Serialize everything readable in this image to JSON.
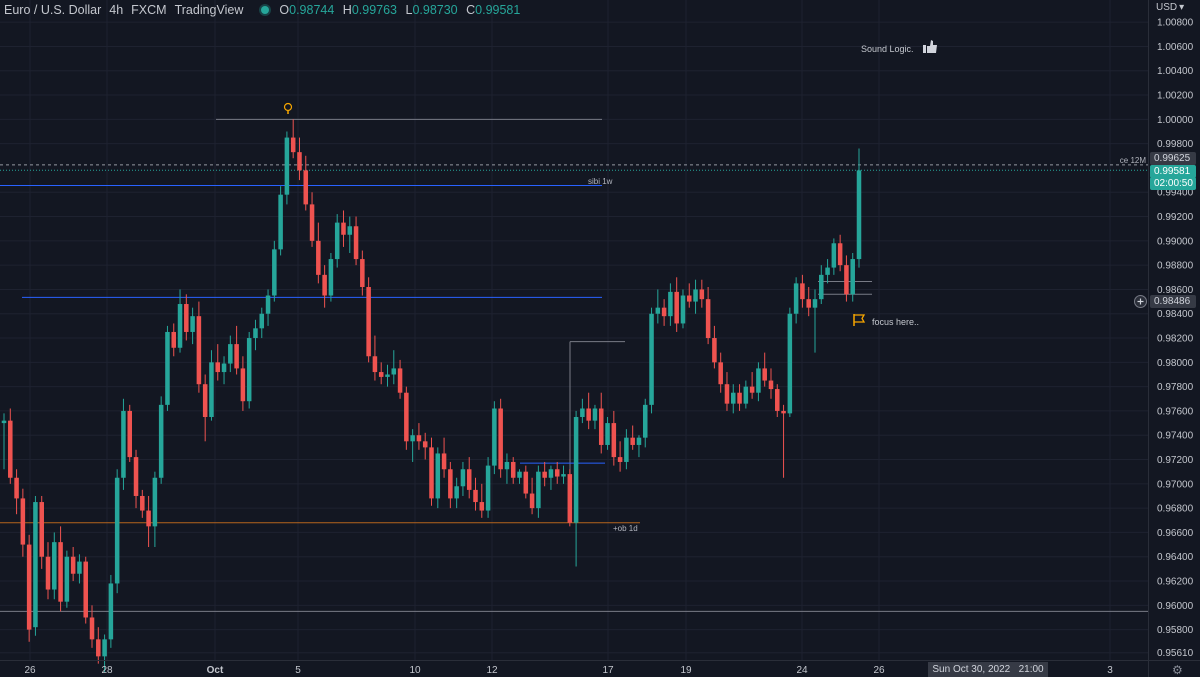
{
  "header": {
    "symbol": "Euro / U.S. Dollar",
    "interval": "4h",
    "exchange": "FXCM",
    "source": "TradingView",
    "ohlc": [
      {
        "k": "O",
        "v": "0.98744"
      },
      {
        "k": "H",
        "v": "0.99763"
      },
      {
        "k": "L",
        "v": "0.98730"
      },
      {
        "k": "C",
        "v": "0.99581"
      }
    ]
  },
  "currency_label": "USD",
  "price_axis": {
    "labels": [
      "1.00800",
      "1.00600",
      "1.00400",
      "1.00200",
      "1.00000",
      "0.99800",
      "0.99400",
      "0.99200",
      "0.99000",
      "0.98800",
      "0.98600",
      "0.98400",
      "0.98200",
      "0.98000",
      "0.97800",
      "0.97600",
      "0.97400",
      "0.97200",
      "0.97000",
      "0.96800",
      "0.96600",
      "0.96400",
      "0.96200",
      "0.96000",
      "0.95800",
      "0.95610"
    ],
    "ce_price": "0.99625",
    "last_price": "0.99581",
    "countdown": "02:00:50",
    "crosshair_price": "0.98486"
  },
  "time_axis": {
    "labels": [
      "26",
      "28",
      "Oct",
      "5",
      "10",
      "12",
      "17",
      "19",
      "24",
      "26",
      "3"
    ],
    "cursor_date": "Sun Oct 30, 2022",
    "cursor_time": "21:00"
  },
  "annotations": {
    "sound_logic": "Sound Logic.",
    "ce_12m": "ce 12M",
    "sibi_1w": "sibi 1w",
    "ob_1d": "+ob 1d",
    "focus": "focus here.."
  },
  "colors": {
    "background": "#131722",
    "up": "#26a69a",
    "down": "#ef5350",
    "grid": "#1e2230",
    "blue_level": "#2962ff",
    "orange_level": "#b5651d",
    "gray_level": "#787b86",
    "flag": "#f7a600"
  },
  "chart_data": {
    "type": "candlestick",
    "timeframe": "4h",
    "ylim": [
      0.9555,
      1.009
    ],
    "x_range": [
      "2022-09-26",
      "2022-11-03"
    ],
    "levels": [
      {
        "label": "",
        "price": 1.0
      },
      {
        "label": "ce 12M",
        "price": 0.99625
      },
      {
        "label": "sibi 1w",
        "price": 0.99455
      },
      {
        "label": "",
        "price": 0.98535
      },
      {
        "label": "+ob 1d",
        "price": 0.9668
      },
      {
        "label": "",
        "price": 0.9595
      }
    ],
    "candles": [
      [
        0.975,
        0.9758,
        0.9712,
        0.9752
      ],
      [
        0.9752,
        0.9762,
        0.97,
        0.9705
      ],
      [
        0.9705,
        0.9712,
        0.9675,
        0.9688
      ],
      [
        0.9688,
        0.9696,
        0.964,
        0.965
      ],
      [
        0.965,
        0.9658,
        0.957,
        0.958
      ],
      [
        0.9582,
        0.969,
        0.9575,
        0.9685
      ],
      [
        0.9685,
        0.969,
        0.963,
        0.964
      ],
      [
        0.964,
        0.9652,
        0.9605,
        0.9613
      ],
      [
        0.9613,
        0.966,
        0.9605,
        0.9652
      ],
      [
        0.9652,
        0.9665,
        0.9595,
        0.9603
      ],
      [
        0.9603,
        0.9645,
        0.9598,
        0.964
      ],
      [
        0.964,
        0.9648,
        0.962,
        0.9626
      ],
      [
        0.9626,
        0.9642,
        0.9618,
        0.9636
      ],
      [
        0.9636,
        0.964,
        0.9585,
        0.959
      ],
      [
        0.959,
        0.96,
        0.9565,
        0.9572
      ],
      [
        0.9572,
        0.9582,
        0.9552,
        0.9558
      ],
      [
        0.9558,
        0.9576,
        0.9545,
        0.9572
      ],
      [
        0.9572,
        0.9625,
        0.9565,
        0.9618
      ],
      [
        0.9618,
        0.9712,
        0.961,
        0.9705
      ],
      [
        0.9705,
        0.977,
        0.9695,
        0.976
      ],
      [
        0.976,
        0.9765,
        0.9718,
        0.9722
      ],
      [
        0.9722,
        0.9728,
        0.968,
        0.969
      ],
      [
        0.969,
        0.9695,
        0.9672,
        0.9678
      ],
      [
        0.9678,
        0.969,
        0.9648,
        0.9665
      ],
      [
        0.9665,
        0.971,
        0.9648,
        0.9705
      ],
      [
        0.9705,
        0.9772,
        0.97,
        0.9765
      ],
      [
        0.9765,
        0.983,
        0.976,
        0.9825
      ],
      [
        0.9825,
        0.9832,
        0.9805,
        0.9812
      ],
      [
        0.9812,
        0.986,
        0.9808,
        0.9848
      ],
      [
        0.9848,
        0.9856,
        0.9818,
        0.9825
      ],
      [
        0.9825,
        0.9845,
        0.9815,
        0.9838
      ],
      [
        0.9838,
        0.985,
        0.9775,
        0.9782
      ],
      [
        0.9782,
        0.979,
        0.9735,
        0.9755
      ],
      [
        0.9755,
        0.981,
        0.9752,
        0.98
      ],
      [
        0.98,
        0.9815,
        0.9785,
        0.9792
      ],
      [
        0.9792,
        0.9805,
        0.9782,
        0.9799
      ],
      [
        0.9799,
        0.9822,
        0.9792,
        0.9815
      ],
      [
        0.9815,
        0.983,
        0.979,
        0.9795
      ],
      [
        0.9795,
        0.9805,
        0.976,
        0.9768
      ],
      [
        0.9768,
        0.9825,
        0.9762,
        0.982
      ],
      [
        0.982,
        0.9835,
        0.981,
        0.9828
      ],
      [
        0.9828,
        0.9845,
        0.982,
        0.984
      ],
      [
        0.984,
        0.986,
        0.983,
        0.9855
      ],
      [
        0.9855,
        0.99,
        0.985,
        0.9893
      ],
      [
        0.9893,
        0.9945,
        0.9888,
        0.9938
      ],
      [
        0.9938,
        0.999,
        0.993,
        0.9985
      ],
      [
        0.9985,
        1.0,
        0.9968,
        0.9973
      ],
      [
        0.9973,
        0.9985,
        0.995,
        0.9958
      ],
      [
        0.9958,
        0.997,
        0.9925,
        0.993
      ],
      [
        0.993,
        0.994,
        0.9895,
        0.99
      ],
      [
        0.99,
        0.9915,
        0.9865,
        0.9872
      ],
      [
        0.9872,
        0.988,
        0.9845,
        0.9855
      ],
      [
        0.9855,
        0.989,
        0.985,
        0.9885
      ],
      [
        0.9885,
        0.9922,
        0.9878,
        0.9915
      ],
      [
        0.9915,
        0.9925,
        0.9895,
        0.9905
      ],
      [
        0.9905,
        0.992,
        0.989,
        0.9912
      ],
      [
        0.9912,
        0.992,
        0.988,
        0.9885
      ],
      [
        0.9885,
        0.9892,
        0.9855,
        0.9862
      ],
      [
        0.9862,
        0.987,
        0.98,
        0.9805
      ],
      [
        0.9805,
        0.9822,
        0.9785,
        0.9792
      ],
      [
        0.9792,
        0.98,
        0.9782,
        0.9788
      ],
      [
        0.9788,
        0.9798,
        0.978,
        0.979
      ],
      [
        0.979,
        0.981,
        0.9782,
        0.9795
      ],
      [
        0.9795,
        0.9802,
        0.977,
        0.9775
      ],
      [
        0.9775,
        0.978,
        0.9728,
        0.9735
      ],
      [
        0.9735,
        0.9745,
        0.9718,
        0.974
      ],
      [
        0.974,
        0.975,
        0.9728,
        0.9735
      ],
      [
        0.9735,
        0.9742,
        0.972,
        0.973
      ],
      [
        0.973,
        0.9738,
        0.9682,
        0.9688
      ],
      [
        0.9688,
        0.973,
        0.968,
        0.9725
      ],
      [
        0.9725,
        0.9738,
        0.9705,
        0.9712
      ],
      [
        0.9712,
        0.9718,
        0.968,
        0.9688
      ],
      [
        0.9688,
        0.9705,
        0.968,
        0.9698
      ],
      [
        0.9698,
        0.9718,
        0.969,
        0.9712
      ],
      [
        0.9712,
        0.9722,
        0.9688,
        0.9695
      ],
      [
        0.9695,
        0.9705,
        0.9678,
        0.9685
      ],
      [
        0.9685,
        0.97,
        0.9672,
        0.9678
      ],
      [
        0.9678,
        0.9722,
        0.9672,
        0.9715
      ],
      [
        0.9715,
        0.9768,
        0.9708,
        0.9762
      ],
      [
        0.9762,
        0.977,
        0.9705,
        0.9712
      ],
      [
        0.9712,
        0.9725,
        0.97,
        0.9718
      ],
      [
        0.9718,
        0.9722,
        0.97,
        0.9705
      ],
      [
        0.9705,
        0.9712,
        0.97,
        0.971
      ],
      [
        0.971,
        0.9715,
        0.9688,
        0.9692
      ],
      [
        0.9692,
        0.9705,
        0.9675,
        0.968
      ],
      [
        0.968,
        0.9715,
        0.9672,
        0.971
      ],
      [
        0.971,
        0.9718,
        0.9698,
        0.9705
      ],
      [
        0.9705,
        0.9715,
        0.9695,
        0.9712
      ],
      [
        0.9712,
        0.9718,
        0.97,
        0.9706
      ],
      [
        0.9706,
        0.9715,
        0.97,
        0.9708
      ],
      [
        0.9708,
        0.9712,
        0.9665,
        0.9668
      ],
      [
        0.9668,
        0.976,
        0.9632,
        0.9755
      ],
      [
        0.9755,
        0.977,
        0.975,
        0.9762
      ],
      [
        0.9762,
        0.9775,
        0.9745,
        0.9752
      ],
      [
        0.9752,
        0.9765,
        0.9745,
        0.9762
      ],
      [
        0.9762,
        0.9775,
        0.9725,
        0.9732
      ],
      [
        0.9732,
        0.9755,
        0.9728,
        0.975
      ],
      [
        0.975,
        0.976,
        0.9715,
        0.9722
      ],
      [
        0.9722,
        0.9735,
        0.971,
        0.9718
      ],
      [
        0.9718,
        0.9745,
        0.9712,
        0.9738
      ],
      [
        0.9738,
        0.9748,
        0.9728,
        0.9732
      ],
      [
        0.9732,
        0.974,
        0.9722,
        0.9738
      ],
      [
        0.9738,
        0.977,
        0.973,
        0.9765
      ],
      [
        0.9765,
        0.9845,
        0.9758,
        0.984
      ],
      [
        0.984,
        0.986,
        0.9832,
        0.9845
      ],
      [
        0.9845,
        0.9852,
        0.983,
        0.9838
      ],
      [
        0.9838,
        0.9865,
        0.983,
        0.9858
      ],
      [
        0.9858,
        0.987,
        0.9825,
        0.9832
      ],
      [
        0.9832,
        0.986,
        0.9828,
        0.9855
      ],
      [
        0.9855,
        0.9865,
        0.9845,
        0.985
      ],
      [
        0.985,
        0.9868,
        0.984,
        0.986
      ],
      [
        0.986,
        0.9868,
        0.9845,
        0.9852
      ],
      [
        0.9852,
        0.9862,
        0.9815,
        0.982
      ],
      [
        0.982,
        0.983,
        0.9795,
        0.98
      ],
      [
        0.98,
        0.9808,
        0.9775,
        0.9782
      ],
      [
        0.9782,
        0.9792,
        0.976,
        0.9766
      ],
      [
        0.9766,
        0.9782,
        0.9758,
        0.9775
      ],
      [
        0.9775,
        0.9782,
        0.976,
        0.9766
      ],
      [
        0.9766,
        0.9785,
        0.9762,
        0.978
      ],
      [
        0.978,
        0.9792,
        0.977,
        0.9775
      ],
      [
        0.9775,
        0.98,
        0.9768,
        0.9795
      ],
      [
        0.9795,
        0.9808,
        0.978,
        0.9785
      ],
      [
        0.9785,
        0.9795,
        0.977,
        0.9778
      ],
      [
        0.9778,
        0.9782,
        0.9755,
        0.976
      ],
      [
        0.976,
        0.9765,
        0.9705,
        0.9758
      ],
      [
        0.9758,
        0.9845,
        0.9755,
        0.984
      ],
      [
        0.984,
        0.987,
        0.9832,
        0.9865
      ],
      [
        0.9865,
        0.9872,
        0.9845,
        0.9852
      ],
      [
        0.9852,
        0.9862,
        0.9838,
        0.9845
      ],
      [
        0.9845,
        0.986,
        0.9808,
        0.9852
      ],
      [
        0.9852,
        0.988,
        0.9848,
        0.9872
      ],
      [
        0.9872,
        0.9885,
        0.9865,
        0.9878
      ],
      [
        0.9878,
        0.9902,
        0.9872,
        0.9898
      ],
      [
        0.9898,
        0.9905,
        0.9875,
        0.988
      ],
      [
        0.988,
        0.9888,
        0.985,
        0.9856
      ],
      [
        0.9856,
        0.989,
        0.985,
        0.9885
      ],
      [
        0.9885,
        0.9976,
        0.9878,
        0.9958
      ]
    ]
  }
}
